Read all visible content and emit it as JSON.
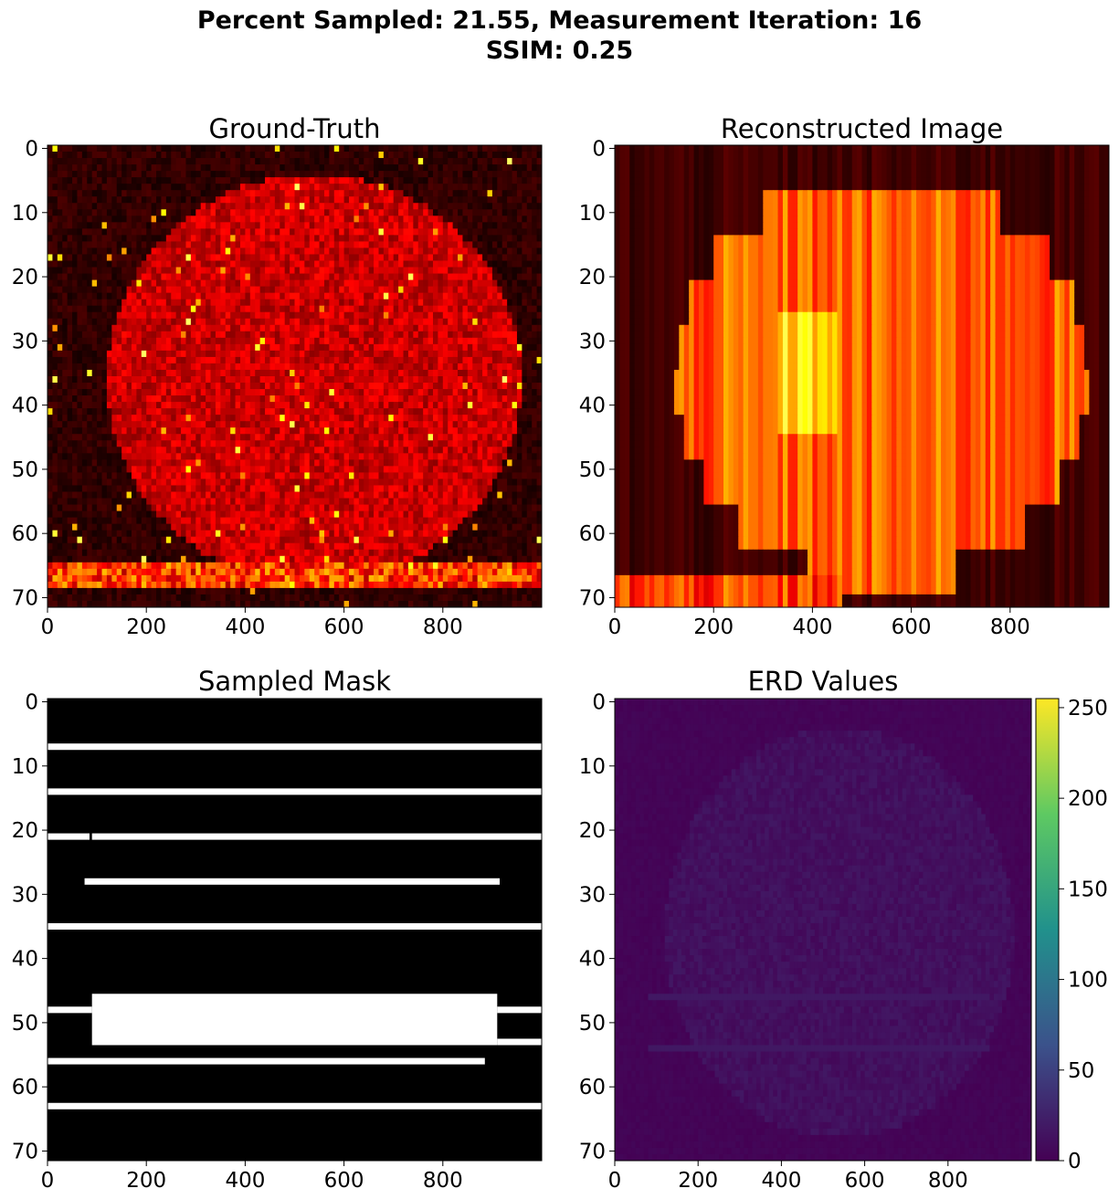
{
  "figure": {
    "title_line1": "Percent Sampled: 21.55, Measurement Iteration: 16",
    "title_line2": "SSIM: 0.25"
  },
  "chart_data": [
    {
      "type": "heatmap",
      "title": "Ground-Truth",
      "colormap": "hot",
      "xlim": [
        0,
        1000
      ],
      "ylim": [
        71.5,
        -0.5
      ],
      "xticks": [
        0,
        200,
        400,
        600,
        800
      ],
      "yticks": [
        0,
        10,
        20,
        30,
        40,
        50,
        60,
        70
      ]
    },
    {
      "type": "heatmap",
      "title": "Reconstructed Image",
      "colormap": "hot",
      "xlim": [
        0,
        1000
      ],
      "ylim": [
        71.5,
        -0.5
      ],
      "xticks": [
        0,
        200,
        400,
        600,
        800
      ],
      "yticks": [
        0,
        10,
        20,
        30,
        40,
        50,
        60,
        70
      ]
    },
    {
      "type": "heatmap",
      "title": "Sampled Mask",
      "colormap": "gray",
      "xlim": [
        0,
        1000
      ],
      "ylim": [
        71.5,
        -0.5
      ],
      "xticks": [
        0,
        200,
        400,
        600,
        800
      ],
      "yticks": [
        0,
        10,
        20,
        30,
        40,
        50,
        60,
        70
      ],
      "sampled_lines": [
        {
          "row": 7,
          "x_start": 0,
          "x_end": 1000
        },
        {
          "row": 14,
          "x_start": 0,
          "x_end": 1000
        },
        {
          "row": 21,
          "x_start": 0,
          "x_end": 85
        },
        {
          "row": 21,
          "x_start": 90,
          "x_end": 1000
        },
        {
          "row": 28,
          "x_start": 75,
          "x_end": 915
        },
        {
          "row": 35,
          "x_start": 0,
          "x_end": 1000
        },
        {
          "row": 48,
          "x_start": 0,
          "x_end": 90
        },
        {
          "row": 48,
          "x_start": 910,
          "x_end": 1000
        },
        {
          "row": 53,
          "x_start": 910,
          "x_end": 1000
        },
        {
          "row": 56,
          "x_start": 0,
          "x_end": 885
        },
        {
          "row": 63,
          "x_start": 0,
          "x_end": 1000
        }
      ],
      "sampled_block": {
        "row_start": 46,
        "row_end": 53,
        "x_start": 90,
        "x_end": 910
      }
    },
    {
      "type": "heatmap",
      "title": "ERD Values",
      "colormap": "viridis",
      "xlim": [
        0,
        1000
      ],
      "ylim": [
        71.5,
        -0.5
      ],
      "xticks": [
        0,
        200,
        400,
        600,
        800
      ],
      "yticks": [
        0,
        10,
        20,
        30,
        40,
        50,
        60,
        70
      ],
      "colorbar": {
        "min": 0,
        "max": 255,
        "ticks": [
          0,
          50,
          100,
          150,
          200,
          250
        ]
      }
    }
  ]
}
